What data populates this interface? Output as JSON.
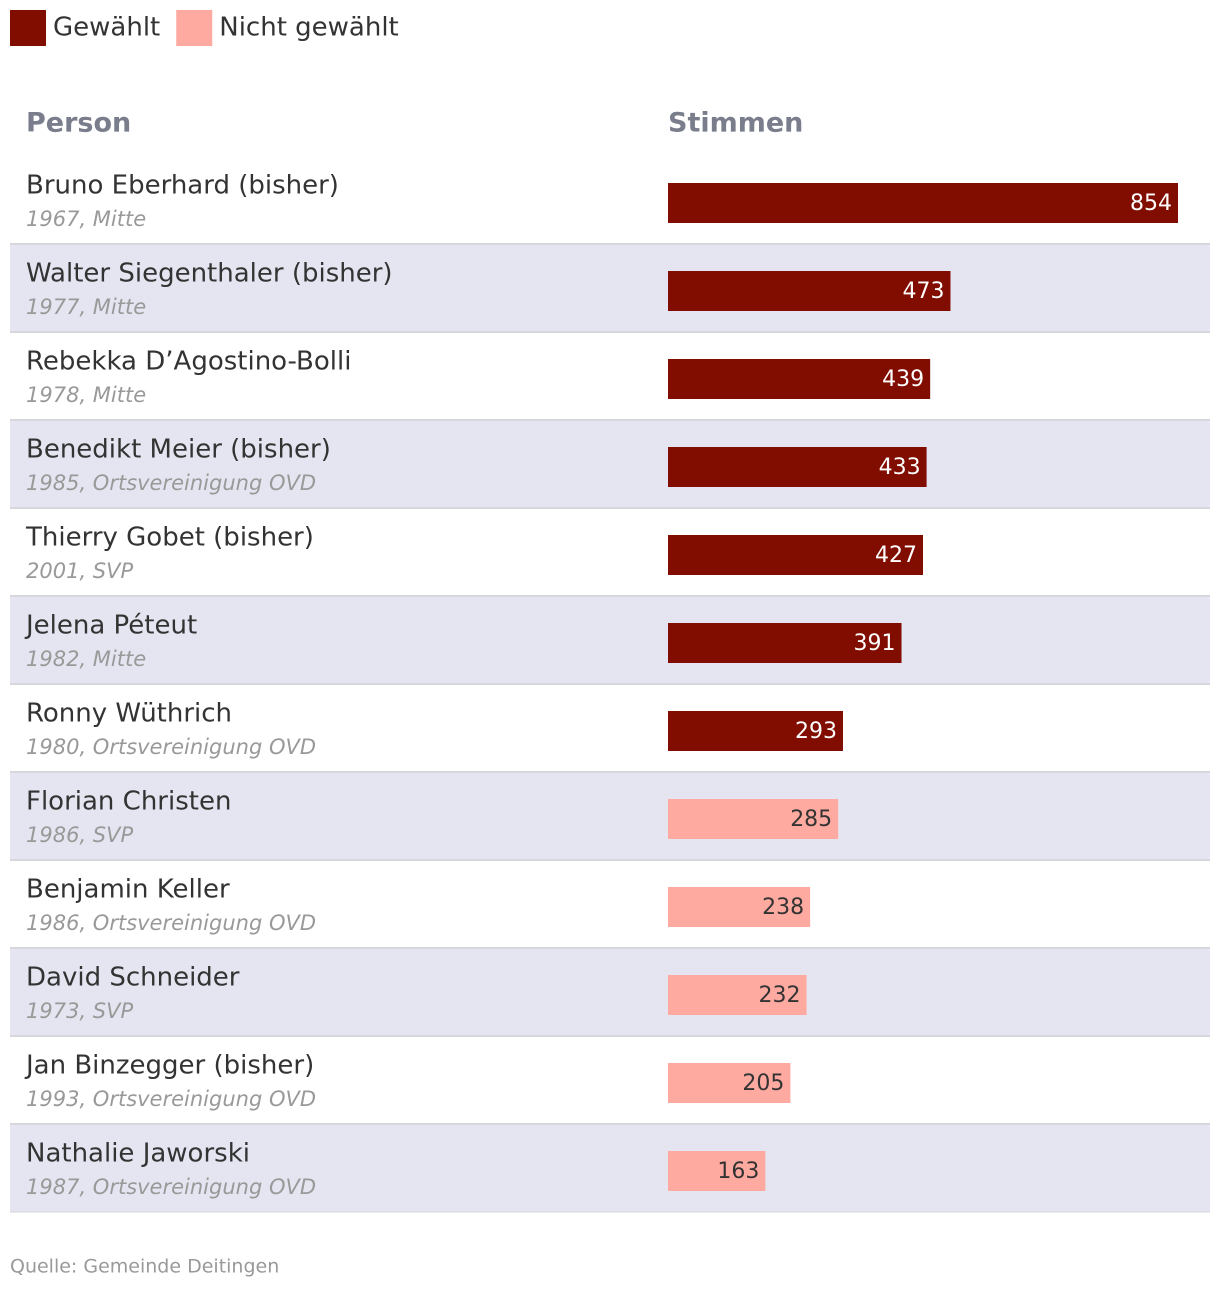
{
  "chart_data": {
    "type": "bar",
    "column_headers": [
      "Person",
      "Stimmen"
    ],
    "categories": [
      "Bruno Eberhard (bisher)",
      "Walter Siegenthaler (bisher)",
      "Rebekka D’Agostino-Bolli",
      "Benedikt Meier (bisher)",
      "Thierry Gobet (bisher)",
      "Jelena Péteut",
      "Ronny Wüthrich",
      "Florian Christen",
      "Benjamin Keller",
      "David Schneider",
      "Jan Binzegger (bisher)",
      "Nathalie Jaworski"
    ],
    "category_details": [
      "1967, Mitte",
      "1977, Mitte",
      "1978, Mitte",
      "1985, Ortsvereinigung OVD",
      "2001, SVP",
      "1982, Mitte",
      "1980, Ortsvereinigung OVD",
      "1986, SVP",
      "1986, Ortsvereinigung OVD",
      "1973, SVP",
      "1993, Ortsvereinigung OVD",
      "1987, Ortsvereinigung OVD"
    ],
    "series": [
      {
        "name": "Gewählt",
        "color": "#800d00",
        "label_color": "#ffffff",
        "values": [
          854,
          473,
          439,
          433,
          427,
          391,
          293,
          null,
          null,
          null,
          null,
          null
        ]
      },
      {
        "name": "Nicht gewählt",
        "color": "#ffaaa0",
        "label_color": "#333333",
        "values": [
          null,
          null,
          null,
          null,
          null,
          null,
          null,
          285,
          238,
          232,
          205,
          163
        ]
      }
    ],
    "xlim": [
      0,
      854
    ],
    "source": "Quelle: Gemeinde Deitingen"
  }
}
